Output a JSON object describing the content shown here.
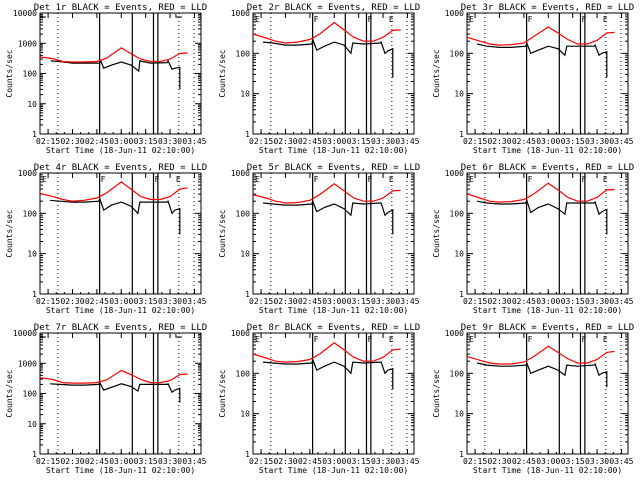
{
  "chart_data": [
    {
      "type": "line",
      "title": "Det 1r BLACK = Events, RED = LLD",
      "ylabel": "Counts/sec",
      "xlabel": "Start Time (18-Jun-11 02:10:00)",
      "yscale": "log",
      "ylim": [
        1,
        10000
      ],
      "yticks": [
        "1",
        "10",
        "100",
        "1000",
        "10000"
      ],
      "series": [
        {
          "name": "Events",
          "color": "#000000",
          "t": [
            2.28,
            2.37,
            2.5,
            2.62,
            2.78,
            2.79,
            2.82,
            2.9,
            3.0,
            3.1,
            3.18,
            3.19,
            3.3,
            3.47,
            3.48,
            3.52,
            3.55,
            3.6,
            3.6
          ],
          "y": [
            260,
            250,
            220,
            220,
            220,
            260,
            150,
            190,
            240,
            190,
            120,
            260,
            220,
            230,
            260,
            140,
            150,
            160,
            30
          ]
        },
        {
          "name": "LLD",
          "color": "#ff0000",
          "t": [
            2.17,
            2.3,
            2.4,
            2.5,
            2.62,
            2.75,
            2.85,
            3.0,
            3.1,
            3.2,
            3.3,
            3.4,
            3.5,
            3.6,
            3.68
          ],
          "y": [
            350,
            310,
            250,
            240,
            240,
            250,
            320,
            700,
            450,
            300,
            250,
            250,
            300,
            460,
            480
          ]
        }
      ],
      "markers": {
        "dotted": [
          2.35,
          3.59,
          3.745
        ],
        "solid": [
          2.778,
          3.113,
          3.33,
          3.375
        ]
      }
    },
    {
      "type": "line",
      "title": "Det 2r BLACK = Events, RED = LLD",
      "ylabel": "Counts/sec",
      "xlabel": "Start Time (18-Jun-11 02:10:00)",
      "yscale": "log",
      "ylim": [
        1,
        1000
      ],
      "yticks": [
        "1",
        "10",
        "100",
        "1000"
      ],
      "series": [
        {
          "name": "Events",
          "color": "#000000",
          "t": [
            2.27,
            2.37,
            2.5,
            2.62,
            2.77,
            2.78,
            2.82,
            2.9,
            3.0,
            3.1,
            3.17,
            3.19,
            3.3,
            3.47,
            3.48,
            3.52,
            3.55,
            3.6,
            3.6
          ],
          "y": [
            190,
            180,
            160,
            160,
            170,
            220,
            120,
            150,
            190,
            160,
            100,
            180,
            170,
            180,
            190,
            100,
            115,
            130,
            25
          ]
        },
        {
          "name": "LLD",
          "color": "#ff0000",
          "t": [
            2.17,
            2.3,
            2.4,
            2.5,
            2.62,
            2.75,
            2.85,
            3.0,
            3.1,
            3.2,
            3.3,
            3.4,
            3.5,
            3.6,
            3.68
          ],
          "y": [
            300,
            240,
            200,
            180,
            190,
            220,
            300,
            580,
            380,
            250,
            200,
            200,
            250,
            370,
            380
          ]
        }
      ],
      "markers": {
        "dotted": [
          2.35,
          3.59,
          3.745
        ],
        "solid": [
          2.778,
          3.113,
          3.33,
          3.375
        ]
      },
      "labels": [
        "E",
        "F",
        "F",
        "E"
      ]
    },
    {
      "type": "line",
      "title": "Det 3r BLACK = Events, RED = LLD",
      "ylabel": "Counts/sec",
      "xlabel": "Start Time (18-Jun-11 02:10:00)",
      "yscale": "log",
      "ylim": [
        1,
        1000
      ],
      "yticks": [
        "1",
        "10",
        "100",
        "1000"
      ],
      "series": [
        {
          "name": "Events",
          "color": "#000000",
          "t": [
            2.27,
            2.37,
            2.5,
            2.62,
            2.77,
            2.78,
            2.82,
            2.9,
            3.0,
            3.1,
            3.17,
            3.19,
            3.3,
            3.47,
            3.48,
            3.52,
            3.55,
            3.6,
            3.6
          ],
          "y": [
            170,
            150,
            140,
            140,
            150,
            180,
            100,
            120,
            150,
            130,
            90,
            150,
            150,
            150,
            160,
            90,
            100,
            110,
            25
          ]
        },
        {
          "name": "LLD",
          "color": "#ff0000",
          "t": [
            2.17,
            2.3,
            2.4,
            2.5,
            2.62,
            2.75,
            2.85,
            3.0,
            3.1,
            3.2,
            3.3,
            3.4,
            3.5,
            3.6,
            3.68
          ],
          "y": [
            250,
            200,
            170,
            160,
            165,
            180,
            260,
            450,
            320,
            220,
            170,
            170,
            210,
            320,
            330
          ]
        }
      ],
      "markers": {
        "dotted": [
          2.35,
          3.59,
          3.745
        ],
        "solid": [
          2.778,
          3.113,
          3.33,
          3.375
        ]
      },
      "labels": [
        "E",
        "F",
        "F",
        "E"
      ]
    },
    {
      "type": "line",
      "title": "Det 4r BLACK = Events, RED = LLD",
      "ylabel": "Counts/sec",
      "xlabel": "Start Time (18-Jun-11 02:10:00)",
      "yscale": "log",
      "ylim": [
        1,
        1000
      ],
      "yticks": [
        "1",
        "10",
        "100",
        "1000"
      ],
      "series": [
        {
          "name": "Events",
          "color": "#000000",
          "t": [
            2.27,
            2.37,
            2.5,
            2.62,
            2.77,
            2.78,
            2.82,
            2.9,
            3.0,
            3.1,
            3.17,
            3.19,
            3.3,
            3.47,
            3.48,
            3.52,
            3.55,
            3.6,
            3.6
          ],
          "y": [
            210,
            200,
            190,
            190,
            200,
            230,
            120,
            160,
            190,
            150,
            100,
            190,
            190,
            190,
            200,
            100,
            120,
            130,
            30
          ]
        },
        {
          "name": "LLD",
          "color": "#ff0000",
          "t": [
            2.17,
            2.3,
            2.4,
            2.5,
            2.62,
            2.75,
            2.85,
            3.0,
            3.1,
            3.2,
            3.3,
            3.4,
            3.5,
            3.6,
            3.68
          ],
          "y": [
            310,
            260,
            220,
            200,
            210,
            240,
            320,
            600,
            400,
            260,
            220,
            220,
            260,
            400,
            430
          ]
        }
      ],
      "markers": {
        "dotted": [
          2.35,
          3.59,
          3.745
        ],
        "solid": [
          2.778,
          3.113,
          3.33,
          3.375
        ]
      },
      "labels": [
        "E",
        "F",
        "F",
        "E"
      ]
    },
    {
      "type": "line",
      "title": "Det 5r BLACK = Events, RED = LLD",
      "ylabel": "Counts/sec",
      "xlabel": "Start Time (18-Jun-11 02:10:00)",
      "yscale": "log",
      "ylim": [
        1,
        1000
      ],
      "yticks": [
        "1",
        "10",
        "100",
        "1000"
      ],
      "series": [
        {
          "name": "Events",
          "color": "#000000",
          "t": [
            2.27,
            2.37,
            2.5,
            2.62,
            2.77,
            2.78,
            2.82,
            2.9,
            3.0,
            3.1,
            3.17,
            3.19,
            3.3,
            3.47,
            3.48,
            3.52,
            3.55,
            3.6,
            3.6
          ],
          "y": [
            180,
            170,
            160,
            160,
            170,
            200,
            110,
            140,
            170,
            130,
            90,
            180,
            170,
            180,
            180,
            90,
            105,
            120,
            30
          ]
        },
        {
          "name": "LLD",
          "color": "#ff0000",
          "t": [
            2.17,
            2.3,
            2.4,
            2.5,
            2.62,
            2.75,
            2.85,
            3.0,
            3.1,
            3.2,
            3.3,
            3.4,
            3.5,
            3.6,
            3.68
          ],
          "y": [
            290,
            240,
            200,
            180,
            185,
            210,
            290,
            540,
            360,
            240,
            200,
            200,
            240,
            360,
            370
          ]
        }
      ],
      "markers": {
        "dotted": [
          2.35,
          3.59,
          3.745
        ],
        "solid": [
          2.778,
          3.113,
          3.33,
          3.375
        ]
      },
      "labels": [
        "E",
        "F",
        "F",
        "E"
      ]
    },
    {
      "type": "line",
      "title": "Det 6r BLACK = Events, RED = LLD",
      "ylabel": "Counts/sec",
      "xlabel": "Start Time (18-Jun-11 02:10:00)",
      "yscale": "log",
      "ylim": [
        1,
        1000
      ],
      "yticks": [
        "1",
        "10",
        "100",
        "1000"
      ],
      "series": [
        {
          "name": "Events",
          "color": "#000000",
          "t": [
            2.27,
            2.37,
            2.5,
            2.62,
            2.77,
            2.78,
            2.82,
            2.9,
            3.0,
            3.1,
            3.17,
            3.19,
            3.3,
            3.47,
            3.48,
            3.52,
            3.55,
            3.6,
            3.6
          ],
          "y": [
            200,
            180,
            170,
            170,
            180,
            210,
            105,
            140,
            170,
            130,
            95,
            180,
            180,
            180,
            190,
            95,
            110,
            125,
            30
          ]
        },
        {
          "name": "LLD",
          "color": "#ff0000",
          "t": [
            2.17,
            2.3,
            2.4,
            2.5,
            2.62,
            2.75,
            2.85,
            3.0,
            3.1,
            3.2,
            3.3,
            3.4,
            3.5,
            3.6,
            3.68
          ],
          "y": [
            300,
            240,
            200,
            190,
            195,
            220,
            300,
            560,
            380,
            250,
            200,
            200,
            250,
            380,
            390
          ]
        }
      ],
      "markers": {
        "dotted": [
          2.35,
          3.59,
          3.745
        ],
        "solid": [
          2.778,
          3.113,
          3.33,
          3.375
        ]
      },
      "labels": [
        "E",
        "F",
        "F",
        "E"
      ]
    },
    {
      "type": "line",
      "title": "Det 7r BLACK = Events, RED = LLD",
      "ylabel": "Counts/sec",
      "xlabel": "Start Time (18-Jun-11 02:10:00)",
      "yscale": "log",
      "ylim": [
        1,
        10000
      ],
      "yticks": [
        "1",
        "10",
        "100",
        "1000",
        "10000"
      ],
      "series": [
        {
          "name": "Events",
          "color": "#000000",
          "t": [
            2.27,
            2.37,
            2.5,
            2.62,
            2.77,
            2.78,
            2.82,
            2.9,
            3.0,
            3.1,
            3.17,
            3.19,
            3.3,
            3.47,
            3.48,
            3.52,
            3.55,
            3.6,
            3.6
          ],
          "y": [
            210,
            200,
            190,
            190,
            200,
            230,
            130,
            160,
            210,
            170,
            120,
            200,
            200,
            200,
            210,
            110,
            130,
            150,
            50
          ]
        },
        {
          "name": "LLD",
          "color": "#ff0000",
          "t": [
            2.17,
            2.3,
            2.4,
            2.5,
            2.62,
            2.75,
            2.85,
            3.0,
            3.1,
            3.2,
            3.3,
            3.4,
            3.5,
            3.6,
            3.68
          ],
          "y": [
            330,
            290,
            230,
            220,
            220,
            230,
            280,
            580,
            420,
            290,
            230,
            230,
            270,
            420,
            440
          ]
        }
      ],
      "markers": {
        "dotted": [
          2.35,
          3.59,
          3.745
        ],
        "solid": [
          2.778,
          3.113,
          3.33,
          3.375
        ]
      }
    },
    {
      "type": "line",
      "title": "Det 8r BLACK = Events, RED = LLD",
      "ylabel": "Counts/sec",
      "xlabel": "Start Time (18-Jun-11 02:10:00)",
      "yscale": "log",
      "ylim": [
        1,
        1000
      ],
      "yticks": [
        "1",
        "10",
        "100",
        "1000"
      ],
      "series": [
        {
          "name": "Events",
          "color": "#000000",
          "t": [
            2.27,
            2.37,
            2.5,
            2.62,
            2.77,
            2.78,
            2.82,
            2.9,
            3.0,
            3.1,
            3.17,
            3.19,
            3.3,
            3.47,
            3.48,
            3.52,
            3.55,
            3.6,
            3.6
          ],
          "y": [
            190,
            180,
            170,
            170,
            180,
            220,
            120,
            150,
            190,
            150,
            100,
            190,
            180,
            190,
            190,
            100,
            120,
            130,
            40
          ]
        },
        {
          "name": "LLD",
          "color": "#ff0000",
          "t": [
            2.17,
            2.3,
            2.4,
            2.5,
            2.62,
            2.75,
            2.85,
            3.0,
            3.1,
            3.2,
            3.3,
            3.4,
            3.5,
            3.6,
            3.68
          ],
          "y": [
            300,
            240,
            200,
            190,
            195,
            220,
            300,
            570,
            380,
            250,
            200,
            200,
            250,
            380,
            400
          ]
        }
      ],
      "markers": {
        "dotted": [
          2.35,
          3.59,
          3.745
        ],
        "solid": [
          2.778,
          3.113,
          3.33,
          3.375
        ]
      },
      "labels": [
        "E",
        "F",
        "F",
        "E"
      ]
    },
    {
      "type": "line",
      "title": "Det 9r BLACK = Events, RED = LLD",
      "ylabel": "Counts/sec",
      "xlabel": "Start Time (18-Jun-11 02:10:00)",
      "yscale": "log",
      "ylim": [
        1,
        1000
      ],
      "yticks": [
        "1",
        "10",
        "100",
        "1000"
      ],
      "series": [
        {
          "name": "Events",
          "color": "#000000",
          "t": [
            2.27,
            2.37,
            2.5,
            2.62,
            2.77,
            2.78,
            2.82,
            2.9,
            3.0,
            3.1,
            3.17,
            3.19,
            3.3,
            3.47,
            3.48,
            3.52,
            3.55,
            3.6,
            3.6
          ],
          "y": [
            180,
            160,
            150,
            150,
            160,
            180,
            100,
            120,
            150,
            120,
            90,
            160,
            150,
            160,
            170,
            90,
            100,
            110,
            45
          ]
        },
        {
          "name": "LLD",
          "color": "#ff0000",
          "t": [
            2.17,
            2.3,
            2.4,
            2.5,
            2.62,
            2.75,
            2.85,
            3.0,
            3.1,
            3.2,
            3.3,
            3.4,
            3.5,
            3.6,
            3.68
          ],
          "y": [
            260,
            210,
            180,
            170,
            170,
            190,
            260,
            470,
            330,
            230,
            180,
            180,
            220,
            330,
            350
          ]
        }
      ],
      "markers": {
        "dotted": [
          2.35,
          3.59,
          3.745
        ],
        "solid": [
          2.778,
          3.113,
          3.33,
          3.375
        ]
      },
      "labels": [
        "E",
        "F",
        "F",
        "E"
      ]
    }
  ],
  "xticks": [
    "02:15",
    "02:30",
    "02:45",
    "03:00",
    "03:15",
    "03:30",
    "03:45"
  ],
  "xtick_hours": [
    2.25,
    2.5,
    2.75,
    3.0,
    3.25,
    3.5,
    3.75
  ],
  "xrange_hours": [
    2.167,
    3.817
  ]
}
